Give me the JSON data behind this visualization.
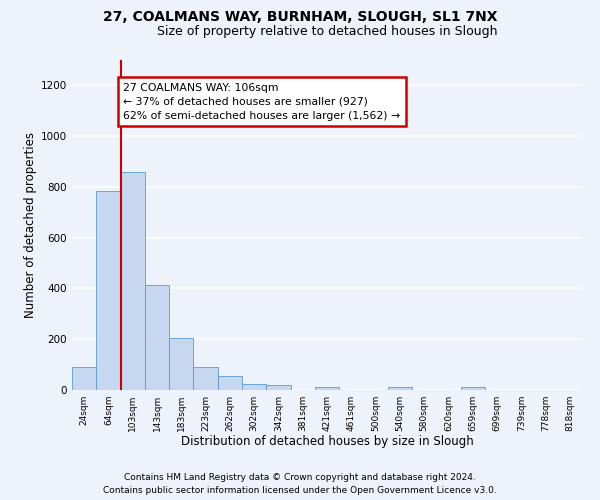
{
  "title1": "27, COALMANS WAY, BURNHAM, SLOUGH, SL1 7NX",
  "title2": "Size of property relative to detached houses in Slough",
  "xlabel": "Distribution of detached houses by size in Slough",
  "ylabel": "Number of detached properties",
  "categories": [
    "24sqm",
    "64sqm",
    "103sqm",
    "143sqm",
    "183sqm",
    "223sqm",
    "262sqm",
    "302sqm",
    "342sqm",
    "381sqm",
    "421sqm",
    "461sqm",
    "500sqm",
    "540sqm",
    "580sqm",
    "620sqm",
    "659sqm",
    "699sqm",
    "739sqm",
    "778sqm",
    "818sqm"
  ],
  "values": [
    90,
    785,
    860,
    415,
    205,
    90,
    55,
    25,
    18,
    0,
    12,
    0,
    0,
    12,
    0,
    0,
    12,
    0,
    0,
    0,
    0
  ],
  "bar_color": "#c5d8f0",
  "bar_edge_color": "#5b9bd5",
  "annotation_text": "27 COALMANS WAY: 106sqm\n← 37% of detached houses are smaller (927)\n62% of semi-detached houses are larger (1,562) →",
  "annotation_box_color": "#ffffff",
  "annotation_box_edge_color": "#cc0000",
  "red_line_color": "#cc0000",
  "ylim": [
    0,
    1300
  ],
  "yticks": [
    0,
    200,
    400,
    600,
    800,
    1000,
    1200
  ],
  "footer1": "Contains HM Land Registry data © Crown copyright and database right 2024.",
  "footer2": "Contains public sector information licensed under the Open Government Licence v3.0.",
  "background_color": "#eef2fb",
  "grid_color": "#ffffff",
  "title1_fontsize": 10,
  "title2_fontsize": 9,
  "xlabel_fontsize": 8.5,
  "ylabel_fontsize": 8.5,
  "footer_fontsize": 6.5
}
